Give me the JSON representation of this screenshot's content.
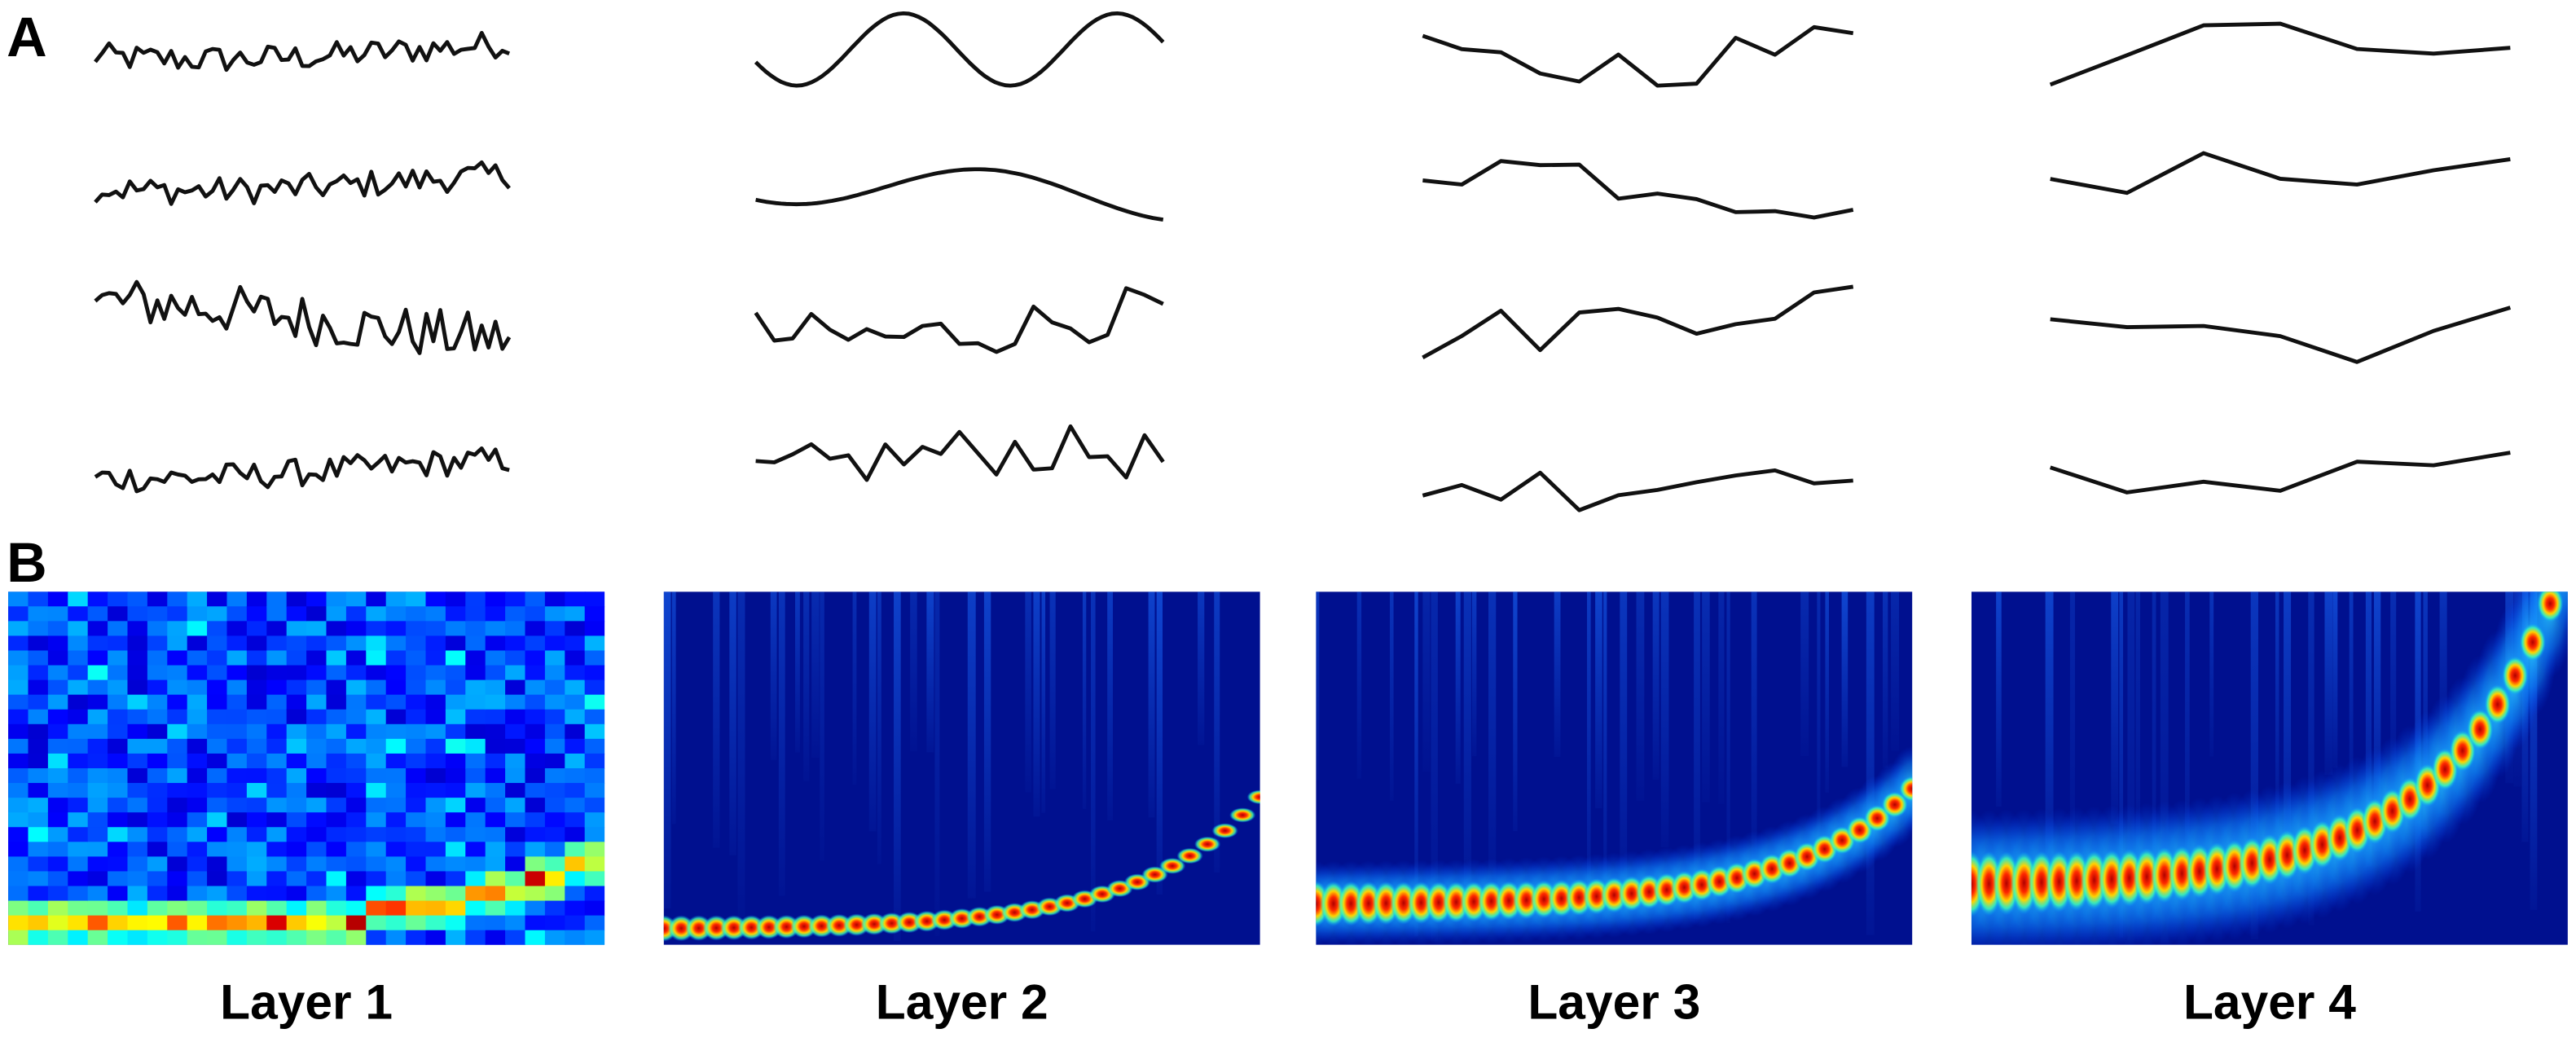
{
  "panels": {
    "a": {
      "label": "A"
    },
    "b": {
      "label": "B",
      "layers": [
        "Layer 1",
        "Layer 2",
        "Layer 3",
        "Layer 4"
      ]
    }
  }
}
